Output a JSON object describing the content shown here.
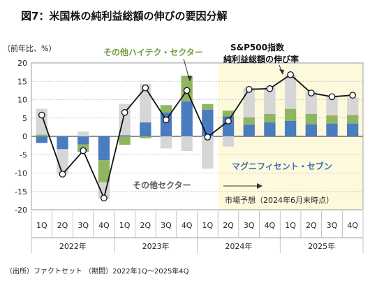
{
  "chart_data": {
    "type": "bar",
    "title": "図7：米国株の純利益総額の伸びの要因分解",
    "ylabel": "（前年比、%）",
    "ylim": [
      -20,
      20
    ],
    "yticks": [
      "20",
      "15",
      "10",
      "5",
      "0",
      "-5",
      "-10",
      "-15",
      "-20"
    ],
    "categories": [
      "1Q",
      "2Q",
      "3Q",
      "4Q",
      "1Q",
      "2Q",
      "3Q",
      "4Q",
      "1Q",
      "2Q",
      "3Q",
      "4Q",
      "1Q",
      "2Q",
      "3Q",
      "4Q"
    ],
    "years": [
      {
        "label": "2022年",
        "start": 0,
        "count": 4
      },
      {
        "label": "2023年",
        "start": 4,
        "count": 4
      },
      {
        "label": "2024年",
        "start": 8,
        "count": 4
      },
      {
        "label": "2025年",
        "start": 12,
        "count": 4
      }
    ],
    "forecast_start_index": 9,
    "series": [
      {
        "name": "マグニフィセント・セブン",
        "kind": "bar",
        "color": "#4a7cc0",
        "values": [
          -1.8,
          -3.5,
          -2.2,
          -6.5,
          0.3,
          3.8,
          6.5,
          9.5,
          7.3,
          5.5,
          3.2,
          3.8,
          4.2,
          3.3,
          3.5,
          3.5
        ]
      },
      {
        "name": "その他ハイテク・セクター",
        "kind": "bar",
        "color": "#8fb560",
        "values": [
          0.5,
          0.2,
          -2.0,
          -6.0,
          -2.3,
          -0.5,
          2.0,
          7.0,
          1.5,
          1.5,
          2.0,
          2.3,
          3.3,
          2.8,
          2.2,
          2.3
        ]
      },
      {
        "name": "その他セクター",
        "kind": "bar",
        "color": "#d6d6d6",
        "values": [
          7.0,
          -6.8,
          1.3,
          -4.5,
          8.5,
          10.5,
          -3.3,
          -4.0,
          -8.8,
          -2.8,
          8.0,
          7.5,
          9.3,
          6.3,
          5.3,
          4.8
        ]
      },
      {
        "name": "S&P500指数純利益総額の伸び率",
        "kind": "line",
        "color": "#111111",
        "values": [
          5.8,
          -10.3,
          -3.9,
          -16.8,
          6.5,
          13.2,
          4.5,
          12.5,
          -0.2,
          4.2,
          12.8,
          13.0,
          16.8,
          11.8,
          10.8,
          11.2
        ]
      }
    ],
    "annotations": {
      "mag7": "マグニフィセント・セブン",
      "other_tech": "その他ハイテク・セクター",
      "other_sectors": "その他セクター",
      "sp500_line1": "S&P500指数",
      "sp500_line2": "純利益総額の伸び率",
      "forecast": "市場予想（2024年6月末時点）"
    },
    "colors": {
      "forecast_bg": "#fdf9dd"
    },
    "source": "（出所）ファクトセット （期間）2022年1Q～2025年4Q"
  }
}
